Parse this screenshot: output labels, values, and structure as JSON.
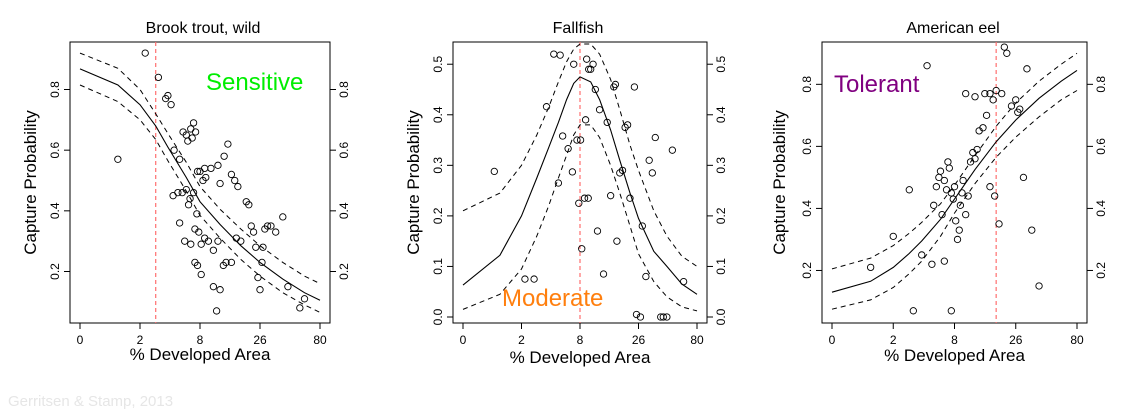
{
  "credit": "Gerritsen & Stamp, 2013",
  "chart_data": [
    {
      "type": "scatter",
      "title": "Brook trout, wild",
      "xlabel": "% Developed Area",
      "ylabel": "Capture Probability",
      "x_ticks": [
        "0",
        "2",
        "8",
        "26",
        "80"
      ],
      "y_ticks": [
        0.2,
        0.4,
        0.6,
        0.8
      ],
      "y_tick_labels": [
        "0.2",
        "0.4",
        "0.6",
        "0.8"
      ],
      "ylim": [
        0.05,
        0.95
      ],
      "category_label": "Sensitive",
      "category_color": "#00ee00",
      "threshold": "3",
      "threshold_x": 3,
      "fit": [
        [
          0,
          0.868
        ],
        [
          1,
          0.815
        ],
        [
          2,
          0.75
        ],
        [
          3,
          0.68
        ],
        [
          4,
          0.61
        ],
        [
          6,
          0.51
        ],
        [
          8,
          0.43
        ],
        [
          12,
          0.355
        ],
        [
          18,
          0.285
        ],
        [
          26,
          0.23
        ],
        [
          40,
          0.175
        ],
        [
          60,
          0.13
        ],
        [
          80,
          0.105
        ]
      ],
      "ci_upper": [
        [
          0,
          0.92
        ],
        [
          1,
          0.87
        ],
        [
          2,
          0.8
        ],
        [
          3,
          0.72
        ],
        [
          4,
          0.655
        ],
        [
          6,
          0.56
        ],
        [
          8,
          0.48
        ],
        [
          12,
          0.405
        ],
        [
          18,
          0.34
        ],
        [
          26,
          0.285
        ],
        [
          40,
          0.23
        ],
        [
          60,
          0.185
        ],
        [
          80,
          0.16
        ]
      ],
      "ci_lower": [
        [
          0,
          0.815
        ],
        [
          1,
          0.76
        ],
        [
          2,
          0.7
        ],
        [
          3,
          0.635
        ],
        [
          4,
          0.565
        ],
        [
          6,
          0.465
        ],
        [
          8,
          0.385
        ],
        [
          12,
          0.31
        ],
        [
          18,
          0.24
        ],
        [
          26,
          0.185
        ],
        [
          40,
          0.13
        ],
        [
          60,
          0.09
        ],
        [
          80,
          0.065
        ]
      ],
      "points": [
        [
          1.0,
          0.57
        ],
        [
          2.3,
          0.92
        ],
        [
          3.2,
          0.84
        ],
        [
          3.8,
          0.77
        ],
        [
          4.0,
          0.78
        ],
        [
          4.3,
          0.75
        ],
        [
          4.6,
          0.6
        ],
        [
          5.2,
          0.57
        ],
        [
          5.6,
          0.66
        ],
        [
          6.0,
          0.65
        ],
        [
          6.2,
          0.63
        ],
        [
          6.6,
          0.67
        ],
        [
          6.8,
          0.64
        ],
        [
          7.0,
          0.69
        ],
        [
          7.3,
          0.66
        ],
        [
          7.6,
          0.53
        ],
        [
          8.0,
          0.53
        ],
        [
          8.5,
          0.5
        ],
        [
          9.0,
          0.51
        ],
        [
          8.8,
          0.54
        ],
        [
          10.0,
          0.54
        ],
        [
          11.5,
          0.55
        ],
        [
          12.0,
          0.49
        ],
        [
          13.0,
          0.58
        ],
        [
          14.0,
          0.62
        ],
        [
          15.0,
          0.52
        ],
        [
          16.0,
          0.5
        ],
        [
          17.0,
          0.48
        ],
        [
          4.5,
          0.45
        ],
        [
          5.0,
          0.46
        ],
        [
          5.5,
          0.46
        ],
        [
          6.0,
          0.47
        ],
        [
          6.3,
          0.42
        ],
        [
          6.5,
          0.44
        ],
        [
          7.0,
          0.46
        ],
        [
          7.5,
          0.39
        ],
        [
          5.2,
          0.36
        ],
        [
          5.8,
          0.3
        ],
        [
          6.6,
          0.29
        ],
        [
          7.2,
          0.34
        ],
        [
          7.8,
          0.33
        ],
        [
          8.2,
          0.29
        ],
        [
          8.8,
          0.31
        ],
        [
          9.5,
          0.3
        ],
        [
          10.5,
          0.27
        ],
        [
          11.5,
          0.3
        ],
        [
          7.2,
          0.23
        ],
        [
          7.6,
          0.22
        ],
        [
          8.2,
          0.19
        ],
        [
          10.5,
          0.15
        ],
        [
          11.2,
          0.07
        ],
        [
          12.0,
          0.14
        ],
        [
          12.8,
          0.22
        ],
        [
          13.5,
          0.23
        ],
        [
          15.0,
          0.23
        ],
        [
          16.5,
          0.31
        ],
        [
          18.0,
          0.3
        ],
        [
          20.0,
          0.43
        ],
        [
          21.0,
          0.42
        ],
        [
          22.0,
          0.35
        ],
        [
          23.0,
          0.33
        ],
        [
          24.0,
          0.28
        ],
        [
          25.0,
          0.18
        ],
        [
          26.0,
          0.14
        ],
        [
          27.0,
          0.23
        ],
        [
          27.5,
          0.28
        ],
        [
          28.5,
          0.34
        ],
        [
          30.0,
          0.35
        ],
        [
          32.0,
          0.35
        ],
        [
          35.0,
          0.33
        ],
        [
          40.0,
          0.38
        ],
        [
          44.0,
          0.15
        ],
        [
          55.0,
          0.08
        ],
        [
          60.0,
          0.11
        ]
      ]
    },
    {
      "type": "scatter",
      "title": "Fallfish",
      "xlabel": "% Developed Area",
      "ylabel": "Capture Probability",
      "x_ticks": [
        "0",
        "2",
        "8",
        "26",
        "80"
      ],
      "y_ticks": [
        0.0,
        0.1,
        0.2,
        0.3,
        0.4,
        0.5
      ],
      "y_tick_labels": [
        "0.0",
        "0.1",
        "0.2",
        "0.3",
        "0.4",
        "0.5"
      ],
      "ylim": [
        0.0,
        0.54
      ],
      "category_label": "Moderate",
      "category_color": "#ff7f0e",
      "threshold": "8",
      "threshold_x": 8,
      "fit": [
        [
          0,
          0.063
        ],
        [
          1,
          0.122
        ],
        [
          2,
          0.2
        ],
        [
          3,
          0.275
        ],
        [
          4,
          0.335
        ],
        [
          5,
          0.385
        ],
        [
          6,
          0.43
        ],
        [
          7,
          0.462
        ],
        [
          8,
          0.475
        ],
        [
          10,
          0.465
        ],
        [
          12,
          0.43
        ],
        [
          15,
          0.37
        ],
        [
          18,
          0.31
        ],
        [
          22,
          0.245
        ],
        [
          26,
          0.195
        ],
        [
          35,
          0.13
        ],
        [
          45,
          0.1
        ],
        [
          60,
          0.065
        ],
        [
          80,
          0.045
        ]
      ],
      "ci_upper": [
        [
          0,
          0.21
        ],
        [
          1,
          0.245
        ],
        [
          2,
          0.3
        ],
        [
          3,
          0.36
        ],
        [
          4,
          0.415
        ],
        [
          5,
          0.465
        ],
        [
          6,
          0.505
        ],
        [
          7,
          0.53
        ],
        [
          8,
          0.54
        ],
        [
          10,
          0.54
        ],
        [
          12,
          0.52
        ],
        [
          15,
          0.47
        ],
        [
          18,
          0.41
        ],
        [
          22,
          0.34
        ],
        [
          26,
          0.29
        ],
        [
          35,
          0.21
        ],
        [
          45,
          0.16
        ],
        [
          60,
          0.12
        ],
        [
          80,
          0.1
        ]
      ],
      "ci_lower": [
        [
          0,
          0.015
        ],
        [
          1,
          0.045
        ],
        [
          2,
          0.095
        ],
        [
          3,
          0.16
        ],
        [
          4,
          0.22
        ],
        [
          5,
          0.275
        ],
        [
          6,
          0.32
        ],
        [
          7,
          0.36
        ],
        [
          8,
          0.38
        ],
        [
          10,
          0.38
        ],
        [
          12,
          0.355
        ],
        [
          15,
          0.3
        ],
        [
          18,
          0.245
        ],
        [
          22,
          0.18
        ],
        [
          26,
          0.125
        ],
        [
          35,
          0.07
        ],
        [
          45,
          0.04
        ],
        [
          60,
          0.02
        ],
        [
          80,
          0.012
        ]
      ],
      "points": [
        [
          0.8,
          0.288
        ],
        [
          2.2,
          0.075
        ],
        [
          2.8,
          0.075
        ],
        [
          3.8,
          0.416
        ],
        [
          4.5,
          0.52
        ],
        [
          5.2,
          0.518
        ],
        [
          5.5,
          0.358
        ],
        [
          5.0,
          0.265
        ],
        [
          6.2,
          0.333
        ],
        [
          6.8,
          0.287
        ],
        [
          7.0,
          0.5
        ],
        [
          7.5,
          0.35
        ],
        [
          7.8,
          0.225
        ],
        [
          8.1,
          0.35
        ],
        [
          8.3,
          0.135
        ],
        [
          8.8,
          0.235
        ],
        [
          9.0,
          0.39
        ],
        [
          9.5,
          0.235
        ],
        [
          9.2,
          0.51
        ],
        [
          9.6,
          0.49
        ],
        [
          10.0,
          0.49
        ],
        [
          10.5,
          0.5
        ],
        [
          11.0,
          0.45
        ],
        [
          11.5,
          0.17
        ],
        [
          12.0,
          0.41
        ],
        [
          13.0,
          0.085
        ],
        [
          14.0,
          0.385
        ],
        [
          15.0,
          0.24
        ],
        [
          16.0,
          0.455
        ],
        [
          16.5,
          0.46
        ],
        [
          17.0,
          0.15
        ],
        [
          18.0,
          0.285
        ],
        [
          19.0,
          0.29
        ],
        [
          20.0,
          0.375
        ],
        [
          21.0,
          0.38
        ],
        [
          22.0,
          0.235
        ],
        [
          24.0,
          0.455
        ],
        [
          25.0,
          0.005
        ],
        [
          27.0,
          0.0
        ],
        [
          28.0,
          0.18
        ],
        [
          30.0,
          0.08
        ],
        [
          32.0,
          0.31
        ],
        [
          34.0,
          0.285
        ],
        [
          36.0,
          0.355
        ],
        [
          40.0,
          0.0
        ],
        [
          42.0,
          0.0
        ],
        [
          45.0,
          0.0
        ],
        [
          50.0,
          0.33
        ],
        [
          62.0,
          0.07
        ]
      ]
    },
    {
      "type": "scatter",
      "title": "American eel",
      "xlabel": "% Developed Area",
      "ylabel": "Capture Probability",
      "x_ticks": [
        "0",
        "2",
        "8",
        "26",
        "80"
      ],
      "y_ticks": [
        0.2,
        0.4,
        0.6,
        0.8
      ],
      "y_tick_labels": [
        "0.2",
        "0.4",
        "0.6",
        "0.8"
      ],
      "ylim": [
        0.05,
        0.93
      ],
      "category_label": "Tolerant",
      "category_color": "#800080",
      "threshold": "18",
      "threshold_x": 18,
      "fit": [
        [
          0,
          0.13
        ],
        [
          1,
          0.165
        ],
        [
          2,
          0.21
        ],
        [
          3,
          0.255
        ],
        [
          4,
          0.295
        ],
        [
          6,
          0.365
        ],
        [
          8,
          0.43
        ],
        [
          12,
          0.525
        ],
        [
          18,
          0.615
        ],
        [
          26,
          0.685
        ],
        [
          40,
          0.755
        ],
        [
          60,
          0.81
        ],
        [
          80,
          0.845
        ]
      ],
      "ci_upper": [
        [
          0,
          0.205
        ],
        [
          1,
          0.24
        ],
        [
          2,
          0.28
        ],
        [
          3,
          0.32
        ],
        [
          4,
          0.355
        ],
        [
          6,
          0.415
        ],
        [
          8,
          0.475
        ],
        [
          12,
          0.57
        ],
        [
          18,
          0.665
        ],
        [
          26,
          0.74
        ],
        [
          40,
          0.81
        ],
        [
          60,
          0.865
        ],
        [
          80,
          0.9
        ]
      ],
      "ci_lower": [
        [
          0,
          0.075
        ],
        [
          1,
          0.105
        ],
        [
          2,
          0.145
        ],
        [
          3,
          0.19
        ],
        [
          4,
          0.23
        ],
        [
          6,
          0.31
        ],
        [
          8,
          0.385
        ],
        [
          12,
          0.48
        ],
        [
          18,
          0.565
        ],
        [
          26,
          0.63
        ],
        [
          40,
          0.695
        ],
        [
          60,
          0.75
        ],
        [
          80,
          0.78
        ]
      ],
      "points": [
        [
          1.0,
          0.21
        ],
        [
          2.0,
          0.31
        ],
        [
          3.0,
          0.46
        ],
        [
          3.3,
          0.07
        ],
        [
          4.0,
          0.25
        ],
        [
          4.5,
          0.86
        ],
        [
          5.0,
          0.22
        ],
        [
          5.2,
          0.41
        ],
        [
          5.5,
          0.47
        ],
        [
          5.8,
          0.5
        ],
        [
          6.0,
          0.52
        ],
        [
          6.2,
          0.38
        ],
        [
          6.5,
          0.49
        ],
        [
          6.8,
          0.46
        ],
        [
          7.0,
          0.55
        ],
        [
          7.2,
          0.53
        ],
        [
          7.5,
          0.45
        ],
        [
          7.8,
          0.43
        ],
        [
          8.0,
          0.47
        ],
        [
          8.2,
          0.36
        ],
        [
          8.5,
          0.3
        ],
        [
          8.8,
          0.33
        ],
        [
          9.0,
          0.41
        ],
        [
          9.3,
          0.45
        ],
        [
          9.5,
          0.49
        ],
        [
          10.0,
          0.38
        ],
        [
          10.5,
          0.44
        ],
        [
          11.0,
          0.55
        ],
        [
          11.5,
          0.58
        ],
        [
          12.0,
          0.56
        ],
        [
          12.5,
          0.59
        ],
        [
          13.0,
          0.65
        ],
        [
          14.0,
          0.66
        ],
        [
          15.0,
          0.7
        ],
        [
          10.0,
          0.77
        ],
        [
          12.0,
          0.76
        ],
        [
          14.5,
          0.77
        ],
        [
          16.0,
          0.77
        ],
        [
          17.0,
          0.75
        ],
        [
          18.0,
          0.78
        ],
        [
          20.0,
          0.77
        ],
        [
          21.0,
          0.92
        ],
        [
          22.0,
          0.9
        ],
        [
          24.0,
          0.73
        ],
        [
          26.0,
          0.75
        ],
        [
          27.0,
          0.71
        ],
        [
          28.0,
          0.72
        ],
        [
          16.0,
          0.47
        ],
        [
          17.5,
          0.44
        ],
        [
          19.0,
          0.35
        ],
        [
          30.0,
          0.5
        ],
        [
          35.0,
          0.33
        ],
        [
          40.0,
          0.15
        ],
        [
          6.5,
          0.23
        ],
        [
          7.5,
          0.07
        ],
        [
          32.0,
          0.85
        ]
      ]
    }
  ]
}
